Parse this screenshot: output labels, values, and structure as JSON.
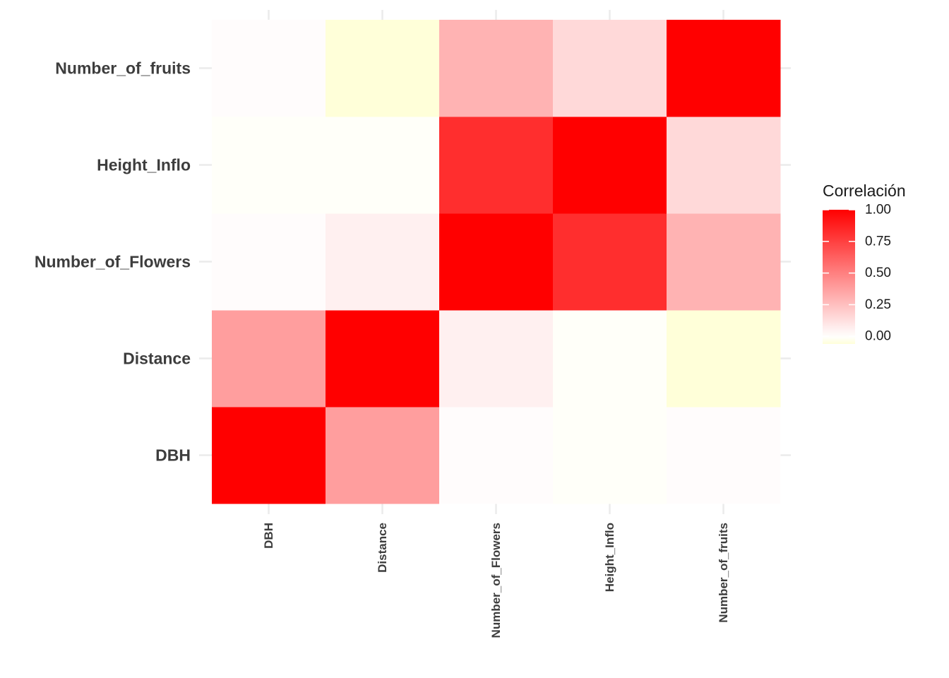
{
  "chart_data": {
    "type": "heatmap",
    "x_categories": [
      "DBH",
      "Distance",
      "Number_of_Flowers",
      "Height_Inflo",
      "Number_of_fruits"
    ],
    "y_categories": [
      "DBH",
      "Distance",
      "Number_of_Flowers",
      "Height_Inflo",
      "Number_of_fruits"
    ],
    "values": [
      [
        1.0,
        0.38,
        0.01,
        -0.01,
        0.01
      ],
      [
        0.38,
        1.0,
        0.06,
        -0.01,
        -0.06
      ],
      [
        0.01,
        0.06,
        1.0,
        0.82,
        0.3
      ],
      [
        -0.01,
        -0.01,
        0.82,
        1.0,
        0.15
      ],
      [
        0.01,
        -0.06,
        0.3,
        0.15,
        1.0
      ]
    ],
    "legend": {
      "title": "Correlación",
      "ticks": [
        "1.00",
        "0.75",
        "0.50",
        "0.25",
        "0.00"
      ],
      "tick_values": [
        1.0,
        0.75,
        0.5,
        0.25,
        0.0
      ],
      "range": [
        -0.06,
        1.0
      ],
      "position": "right"
    },
    "colors": {
      "high": "#ff0000",
      "mid": "#ffffff",
      "low": "#ffffd9",
      "grid": "#ebebeb"
    },
    "grid": true
  }
}
